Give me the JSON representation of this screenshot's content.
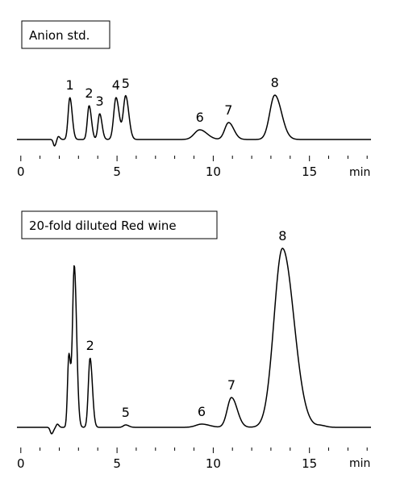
{
  "chart_data": [
    {
      "type": "line",
      "title": "Anion std.",
      "xlabel": "min",
      "xlim": [
        -0.2,
        18.2
      ],
      "x_ticks": [
        0,
        5,
        10,
        15
      ],
      "tick_labels": [
        "0",
        "5",
        "10",
        "15"
      ],
      "minor_tick_step": 1,
      "y_axis_shown": false,
      "grid": false,
      "series": [
        {
          "baseline": 0,
          "peaks": [
            {
              "label": "1",
              "rt": 2.55,
              "height": 52,
              "width": 0.09
            },
            {
              "label": "2",
              "rt": 3.55,
              "height": 42,
              "width": 0.09
            },
            {
              "label": "3",
              "rt": 4.1,
              "height": 32,
              "width": 0.09
            },
            {
              "label": "4",
              "rt": 4.95,
              "height": 52,
              "width": 0.12
            },
            {
              "label": "5",
              "rt": 5.45,
              "height": 54,
              "width": 0.12
            },
            {
              "label": "6",
              "rt": 9.3,
              "height": 12,
              "width": 0.28
            },
            {
              "label": "7",
              "rt": 10.8,
              "height": 21,
              "width": 0.2
            },
            {
              "label": "8",
              "rt": 13.2,
              "height": 55,
              "width": 0.26
            }
          ],
          "disturbances": [
            {
              "rt": 1.75,
              "height": -8,
              "width": 0.06
            },
            {
              "rt": 1.95,
              "height": 4,
              "width": 0.06
            }
          ]
        }
      ]
    },
    {
      "type": "line",
      "title": "20-fold diluted Red wine",
      "xlabel": "min",
      "xlim": [
        -0.2,
        18.2
      ],
      "x_ticks": [
        0,
        5,
        10,
        15
      ],
      "tick_labels": [
        "0",
        "5",
        "10",
        "15"
      ],
      "minor_tick_step": 1,
      "y_axis_shown": false,
      "grid": false,
      "series": [
        {
          "baseline": 0,
          "peaks": [
            {
              "label": "",
              "rt": 2.5,
              "height": 90,
              "width": 0.07
            },
            {
              "label": "",
              "rt": 2.78,
              "height": 200,
              "width": 0.09
            },
            {
              "label": "2",
              "rt": 3.6,
              "height": 86,
              "width": 0.09
            },
            {
              "label": "5",
              "rt": 5.45,
              "height": 3,
              "width": 0.12
            },
            {
              "label": "6",
              "rt": 9.4,
              "height": 4,
              "width": 0.3
            },
            {
              "label": "7",
              "rt": 10.95,
              "height": 37,
              "width": 0.22
            },
            {
              "label": "8",
              "rt": 13.6,
              "height": 222,
              "width": 0.44
            }
          ],
          "disturbances": [
            {
              "rt": 1.6,
              "height": -8,
              "width": 0.07
            },
            {
              "rt": 1.9,
              "height": 4,
              "width": 0.06
            },
            {
              "rt": 15.6,
              "height": 2,
              "width": 0.2
            }
          ]
        }
      ]
    }
  ]
}
